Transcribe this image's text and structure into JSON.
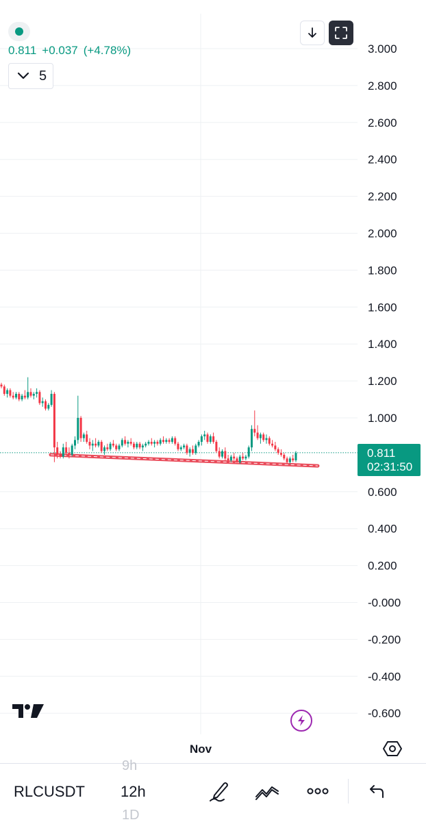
{
  "header": {
    "last_price": "0.811",
    "change": "+0.037",
    "change_pct": "(+4.78%)",
    "collapse_count": "5"
  },
  "price_label": {
    "price": "0.811",
    "countdown": "02:31:50"
  },
  "chart_data": {
    "type": "candlestick",
    "symbol": "RLCUSDT",
    "timeframe": "12h",
    "y_ticks": [
      "3.000",
      "2.800",
      "2.600",
      "2.400",
      "2.200",
      "2.000",
      "1.800",
      "1.600",
      "1.400",
      "1.200",
      "1.000",
      "0.600",
      "0.400",
      "0.200",
      "-0.000",
      "-0.200",
      "-0.400",
      "-0.600"
    ],
    "y_tick_values": [
      3.0,
      2.8,
      2.6,
      2.4,
      2.2,
      2.0,
      1.8,
      1.6,
      1.4,
      1.2,
      1.0,
      0.6,
      0.4,
      0.2,
      0.0,
      -0.2,
      -0.4,
      -0.6
    ],
    "x_tick": "Nov",
    "current_price": 0.811,
    "ohlc": [
      [
        1.18,
        1.19,
        1.16,
        1.17
      ],
      [
        1.17,
        1.18,
        1.12,
        1.13
      ],
      [
        1.13,
        1.16,
        1.11,
        1.15
      ],
      [
        1.15,
        1.16,
        1.11,
        1.12
      ],
      [
        1.12,
        1.14,
        1.1,
        1.11
      ],
      [
        1.11,
        1.14,
        1.1,
        1.13
      ],
      [
        1.13,
        1.14,
        1.09,
        1.1
      ],
      [
        1.1,
        1.13,
        1.09,
        1.12
      ],
      [
        1.12,
        1.15,
        1.1,
        1.11
      ],
      [
        1.11,
        1.22,
        1.1,
        1.14
      ],
      [
        1.14,
        1.16,
        1.11,
        1.12
      ],
      [
        1.12,
        1.14,
        1.1,
        1.13
      ],
      [
        1.13,
        1.16,
        1.11,
        1.14
      ],
      [
        1.14,
        1.15,
        1.07,
        1.08
      ],
      [
        1.08,
        1.11,
        1.06,
        1.09
      ],
      [
        1.09,
        1.1,
        1.04,
        1.05
      ],
      [
        1.05,
        1.08,
        1.04,
        1.07
      ],
      [
        1.07,
        1.15,
        1.06,
        1.13
      ],
      [
        1.13,
        1.14,
        0.76,
        0.84
      ],
      [
        0.84,
        0.87,
        0.78,
        0.8
      ],
      [
        0.8,
        0.82,
        0.78,
        0.79
      ],
      [
        0.79,
        0.86,
        0.78,
        0.84
      ],
      [
        0.84,
        0.87,
        0.8,
        0.81
      ],
      [
        0.81,
        0.84,
        0.78,
        0.8
      ],
      [
        0.8,
        0.86,
        0.79,
        0.85
      ],
      [
        0.85,
        0.9,
        0.83,
        0.88
      ],
      [
        0.88,
        1.12,
        0.86,
        1.0
      ],
      [
        1.0,
        1.01,
        0.87,
        0.89
      ],
      [
        0.89,
        0.92,
        0.87,
        0.91
      ],
      [
        0.91,
        0.93,
        0.86,
        0.87
      ],
      [
        0.87,
        0.89,
        0.83,
        0.85
      ],
      [
        0.85,
        0.88,
        0.82,
        0.86
      ],
      [
        0.86,
        0.89,
        0.84,
        0.85
      ],
      [
        0.85,
        0.88,
        0.84,
        0.87
      ],
      [
        0.87,
        0.88,
        0.81,
        0.82
      ],
      [
        0.82,
        0.85,
        0.8,
        0.84
      ],
      [
        0.84,
        0.86,
        0.82,
        0.83
      ],
      [
        0.83,
        0.87,
        0.82,
        0.86
      ],
      [
        0.86,
        0.88,
        0.84,
        0.85
      ],
      [
        0.85,
        0.86,
        0.82,
        0.83
      ],
      [
        0.83,
        0.86,
        0.82,
        0.85
      ],
      [
        0.85,
        0.89,
        0.84,
        0.88
      ],
      [
        0.88,
        0.9,
        0.85,
        0.86
      ],
      [
        0.86,
        0.88,
        0.84,
        0.87
      ],
      [
        0.87,
        0.89,
        0.85,
        0.86
      ],
      [
        0.86,
        0.87,
        0.83,
        0.84
      ],
      [
        0.84,
        0.87,
        0.83,
        0.86
      ],
      [
        0.86,
        0.87,
        0.83,
        0.84
      ],
      [
        0.84,
        0.86,
        0.82,
        0.85
      ],
      [
        0.85,
        0.87,
        0.84,
        0.86
      ],
      [
        0.86,
        0.88,
        0.85,
        0.87
      ],
      [
        0.87,
        0.89,
        0.85,
        0.86
      ],
      [
        0.86,
        0.88,
        0.84,
        0.87
      ],
      [
        0.87,
        0.88,
        0.85,
        0.86
      ],
      [
        0.86,
        0.89,
        0.85,
        0.88
      ],
      [
        0.88,
        0.9,
        0.86,
        0.87
      ],
      [
        0.87,
        0.89,
        0.86,
        0.88
      ],
      [
        0.88,
        0.89,
        0.86,
        0.87
      ],
      [
        0.87,
        0.9,
        0.86,
        0.89
      ],
      [
        0.89,
        0.9,
        0.85,
        0.86
      ],
      [
        0.86,
        0.87,
        0.82,
        0.83
      ],
      [
        0.83,
        0.85,
        0.82,
        0.84
      ],
      [
        0.84,
        0.86,
        0.83,
        0.85
      ],
      [
        0.85,
        0.86,
        0.8,
        0.81
      ],
      [
        0.81,
        0.84,
        0.79,
        0.83
      ],
      [
        0.83,
        0.85,
        0.8,
        0.81
      ],
      [
        0.81,
        0.86,
        0.8,
        0.85
      ],
      [
        0.85,
        0.88,
        0.84,
        0.87
      ],
      [
        0.87,
        0.91,
        0.85,
        0.9
      ],
      [
        0.9,
        0.93,
        0.88,
        0.91
      ],
      [
        0.91,
        0.92,
        0.86,
        0.87
      ],
      [
        0.87,
        0.91,
        0.86,
        0.9
      ],
      [
        0.9,
        0.92,
        0.86,
        0.87
      ],
      [
        0.87,
        0.88,
        0.81,
        0.82
      ],
      [
        0.82,
        0.84,
        0.78,
        0.79
      ],
      [
        0.79,
        0.83,
        0.78,
        0.82
      ],
      [
        0.82,
        0.84,
        0.77,
        0.78
      ],
      [
        0.78,
        0.8,
        0.76,
        0.77
      ],
      [
        0.77,
        0.8,
        0.76,
        0.79
      ],
      [
        0.79,
        0.81,
        0.77,
        0.78
      ],
      [
        0.78,
        0.79,
        0.75,
        0.76
      ],
      [
        0.76,
        0.8,
        0.75,
        0.79
      ],
      [
        0.79,
        0.81,
        0.77,
        0.78
      ],
      [
        0.78,
        0.8,
        0.77,
        0.79
      ],
      [
        0.79,
        0.85,
        0.78,
        0.84
      ],
      [
        0.84,
        0.96,
        0.82,
        0.94
      ],
      [
        0.94,
        1.04,
        0.9,
        0.92
      ],
      [
        0.92,
        0.96,
        0.88,
        0.89
      ],
      [
        0.89,
        0.92,
        0.86,
        0.91
      ],
      [
        0.91,
        0.92,
        0.87,
        0.88
      ],
      [
        0.88,
        0.91,
        0.86,
        0.89
      ],
      [
        0.89,
        0.9,
        0.85,
        0.86
      ],
      [
        0.86,
        0.88,
        0.84,
        0.85
      ],
      [
        0.85,
        0.87,
        0.82,
        0.83
      ],
      [
        0.83,
        0.84,
        0.8,
        0.81
      ],
      [
        0.81,
        0.83,
        0.79,
        0.8
      ],
      [
        0.8,
        0.81,
        0.77,
        0.78
      ],
      [
        0.78,
        0.79,
        0.75,
        0.76
      ],
      [
        0.76,
        0.79,
        0.75,
        0.78
      ],
      [
        0.78,
        0.8,
        0.76,
        0.77
      ],
      [
        0.77,
        0.82,
        0.76,
        0.81
      ]
    ],
    "support_line": {
      "from": [
        0,
        0.8
      ],
      "to": [
        102,
        0.74
      ]
    }
  },
  "bottom_bar": {
    "symbol": "RLCUSDT",
    "timeframe_prev": "9h",
    "timeframe_current": "12h",
    "timeframe_next": "1D"
  },
  "colors": {
    "up": "#089981",
    "down": "#f23645",
    "accent": "#089981",
    "support_line": "#e94b5a",
    "grid": "#eef0f3"
  },
  "icons": [
    "status-dot-icon",
    "arrow-down-icon",
    "fullscreen-icon",
    "chevron-down-icon",
    "tradingview-logo",
    "lightning-icon",
    "settings-hexagon-icon",
    "pencil-icon",
    "indicator-icon",
    "more-icon",
    "undo-icon"
  ]
}
